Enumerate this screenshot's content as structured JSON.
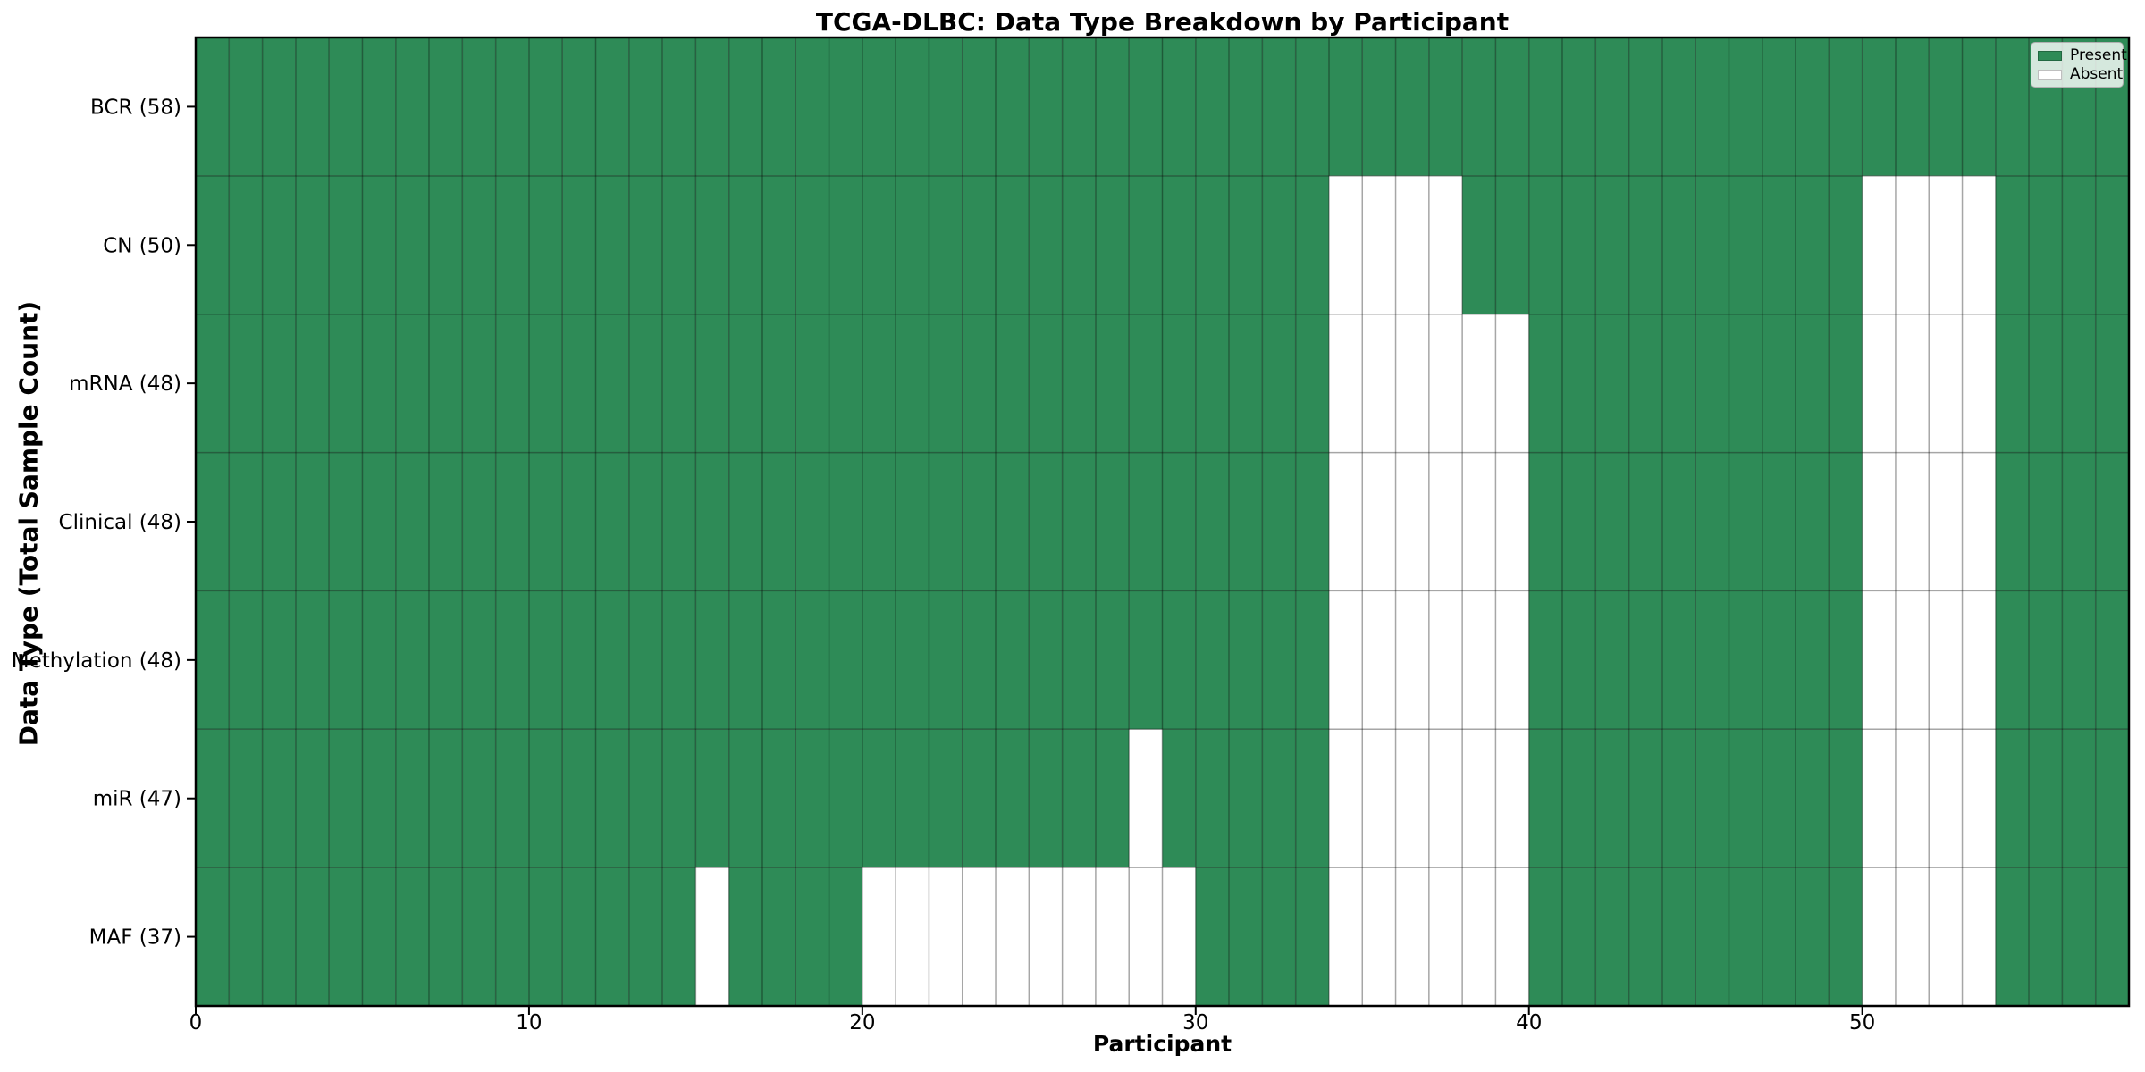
{
  "chart_data": {
    "type": "heatmap",
    "title": "TCGA-DLBC: Data Type Breakdown by Participant",
    "xlabel": "Participant",
    "ylabel": "Data Type (Total Sample Count)",
    "n_participants": 58,
    "x_axis": {
      "min": 0,
      "max": 58,
      "ticks": [
        0,
        10,
        20,
        30,
        40,
        50
      ]
    },
    "grid": true,
    "legend": {
      "position": "upper right",
      "entries": [
        {
          "label": "Present",
          "color": "#2e8b57"
        },
        {
          "label": "Absent",
          "color": "#ffffff"
        }
      ]
    },
    "colors": {
      "present": "#2e8b57",
      "absent": "#ffffff",
      "grid": "rgba(0,0,0,0.35)",
      "spine": "#000000",
      "tick": "#000000",
      "legend_bg": "rgba(255,255,255,0.8)",
      "legend_border": "#b0b0b0"
    },
    "rows": [
      {
        "name": "BCR",
        "label": "BCR (58)",
        "present_count": 58,
        "absent_participants": []
      },
      {
        "name": "CN",
        "label": "CN (50)",
        "present_count": 50,
        "absent_participants": [
          34,
          35,
          36,
          37,
          50,
          51,
          52,
          53
        ]
      },
      {
        "name": "mRNA",
        "label": "mRNA (48)",
        "present_count": 48,
        "absent_participants": [
          34,
          35,
          36,
          37,
          38,
          39,
          50,
          51,
          52,
          53
        ]
      },
      {
        "name": "Clinical",
        "label": "Clinical (48)",
        "present_count": 48,
        "absent_participants": [
          34,
          35,
          36,
          37,
          38,
          39,
          50,
          51,
          52,
          53
        ]
      },
      {
        "name": "Methylation",
        "label": "Methylation (48)",
        "present_count": 48,
        "absent_participants": [
          34,
          35,
          36,
          37,
          38,
          39,
          50,
          51,
          52,
          53
        ]
      },
      {
        "name": "miR",
        "label": "miR (47)",
        "present_count": 47,
        "absent_participants": [
          28,
          34,
          35,
          36,
          37,
          38,
          39,
          50,
          51,
          52,
          53
        ]
      },
      {
        "name": "MAF",
        "label": "MAF (37)",
        "present_count": 37,
        "absent_participants": [
          15,
          20,
          21,
          22,
          23,
          24,
          25,
          26,
          27,
          28,
          29,
          34,
          35,
          36,
          37,
          38,
          39,
          50,
          51,
          52,
          53
        ]
      }
    ]
  }
}
